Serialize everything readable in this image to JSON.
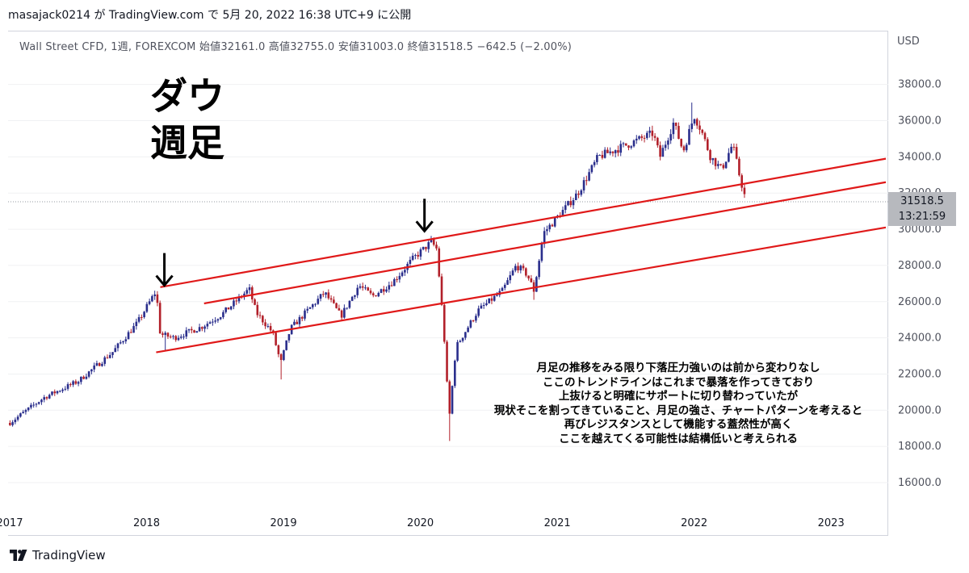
{
  "header": {
    "text": "masajack0214 が TradingView.com で 5月 20, 2022 16:38 UTC+9 に公開"
  },
  "legend": {
    "text": "Wall Street CFD, 1週, FOREXCOM  始値32161.0  高値32755.0  安値31003.0  終値31518.5  −642.5 (−2.00%)"
  },
  "title_lines": [
    "ダウ",
    "週足"
  ],
  "annotation_lines": [
    "月足の推移をみる限り下落圧力強いのは前から変わりなし",
    "ここのトレンドラインはこれまで暴落を作ってきており",
    "上抜けると明確にサポートに切り替わっていたが",
    "現状そこを割ってきていること、月足の強さ、チャートパターンを考えると",
    "再びレジスタンスとして機能する蓋然性が高く",
    "ここを越えてくる可能性は結構低いと考えられる"
  ],
  "price_tag": {
    "price": "31518.5",
    "countdown": "13:21:59"
  },
  "footer": {
    "brand": "TradingView"
  },
  "colors": {
    "up": "#2a2e8c",
    "down": "#b2202a",
    "trendline": "#e01919",
    "grid": "#c8cad0"
  },
  "chart_data": {
    "type": "candlestick",
    "currency": "USD",
    "ylim": [
      14600,
      39600
    ],
    "yticks": [
      16000,
      18000,
      20000,
      22000,
      24000,
      26000,
      28000,
      30000,
      32000,
      34000,
      36000,
      38000
    ],
    "ytick_labels": [
      "16000.0",
      "18000.0",
      "20000.0",
      "22000.0",
      "24000.0",
      "26000.0",
      "28000.0",
      "30000.0",
      "32000.0",
      "34000.0",
      "36000.0",
      "38000.0"
    ],
    "xlim": [
      2017.0,
      2023.4
    ],
    "xticks": [
      2017,
      2018,
      2019,
      2020,
      2021,
      2022,
      2023
    ],
    "xtick_labels": [
      "2017",
      "2018",
      "2019",
      "2020",
      "2021",
      "2022",
      "2023"
    ],
    "current_price": 31518.5,
    "ohlc_anchors": [
      [
        2017.0,
        19300
      ],
      [
        2017.25,
        20700
      ],
      [
        2017.5,
        21600
      ],
      [
        2017.75,
        23200
      ],
      [
        2017.93,
        24800
      ],
      [
        2018.07,
        26600
      ],
      [
        2018.1,
        24200
      ],
      [
        2018.2,
        24000
      ],
      [
        2018.4,
        24600
      ],
      [
        2018.55,
        25300
      ],
      [
        2018.75,
        26700
      ],
      [
        2018.8,
        25400
      ],
      [
        2018.92,
        24300
      ],
      [
        2018.98,
        22600
      ],
      [
        2019.05,
        24500
      ],
      [
        2019.3,
        26500
      ],
      [
        2019.42,
        25200
      ],
      [
        2019.55,
        26900
      ],
      [
        2019.65,
        26300
      ],
      [
        2019.8,
        27100
      ],
      [
        2019.95,
        28400
      ],
      [
        2020.08,
        29300
      ],
      [
        2020.12,
        28900
      ],
      [
        2020.17,
        24500
      ],
      [
        2020.21,
        19500
      ],
      [
        2020.26,
        23500
      ],
      [
        2020.42,
        25500
      ],
      [
        2020.6,
        26600
      ],
      [
        2020.7,
        28000
      ],
      [
        2020.78,
        27500
      ],
      [
        2020.83,
        26600
      ],
      [
        2020.9,
        29800
      ],
      [
        2020.97,
        30400
      ],
      [
        2021.05,
        31100
      ],
      [
        2021.15,
        32000
      ],
      [
        2021.3,
        34000
      ],
      [
        2021.55,
        34800
      ],
      [
        2021.7,
        35300
      ],
      [
        2021.75,
        34000
      ],
      [
        2021.85,
        35900
      ],
      [
        2021.92,
        34300
      ],
      [
        2022.0,
        36300
      ],
      [
        2022.05,
        35500
      ],
      [
        2022.12,
        34000
      ],
      [
        2022.2,
        33300
      ],
      [
        2022.28,
        34700
      ],
      [
        2022.33,
        33000
      ],
      [
        2022.38,
        31500
      ]
    ],
    "wick_extremes": [
      {
        "x": 2018.13,
        "low": 23300
      },
      {
        "x": 2018.98,
        "low": 21700
      },
      {
        "x": 2020.21,
        "low": 18300
      },
      {
        "x": 2020.83,
        "low": 26100
      },
      {
        "x": 2021.99,
        "high": 37000
      }
    ],
    "trendlines": [
      {
        "x1": 2018.1,
        "y1": 26800,
        "x2": 2023.4,
        "y2": 33900
      },
      {
        "x1": 2018.42,
        "y1": 25900,
        "x2": 2023.4,
        "y2": 32600
      },
      {
        "x1": 2018.07,
        "y1": 23200,
        "x2": 2023.4,
        "y2": 30100
      }
    ],
    "arrows": [
      {
        "x": 2018.13,
        "y": 26900
      },
      {
        "x": 2020.03,
        "y": 29900
      }
    ],
    "dotted_price_line": 31518.5
  }
}
